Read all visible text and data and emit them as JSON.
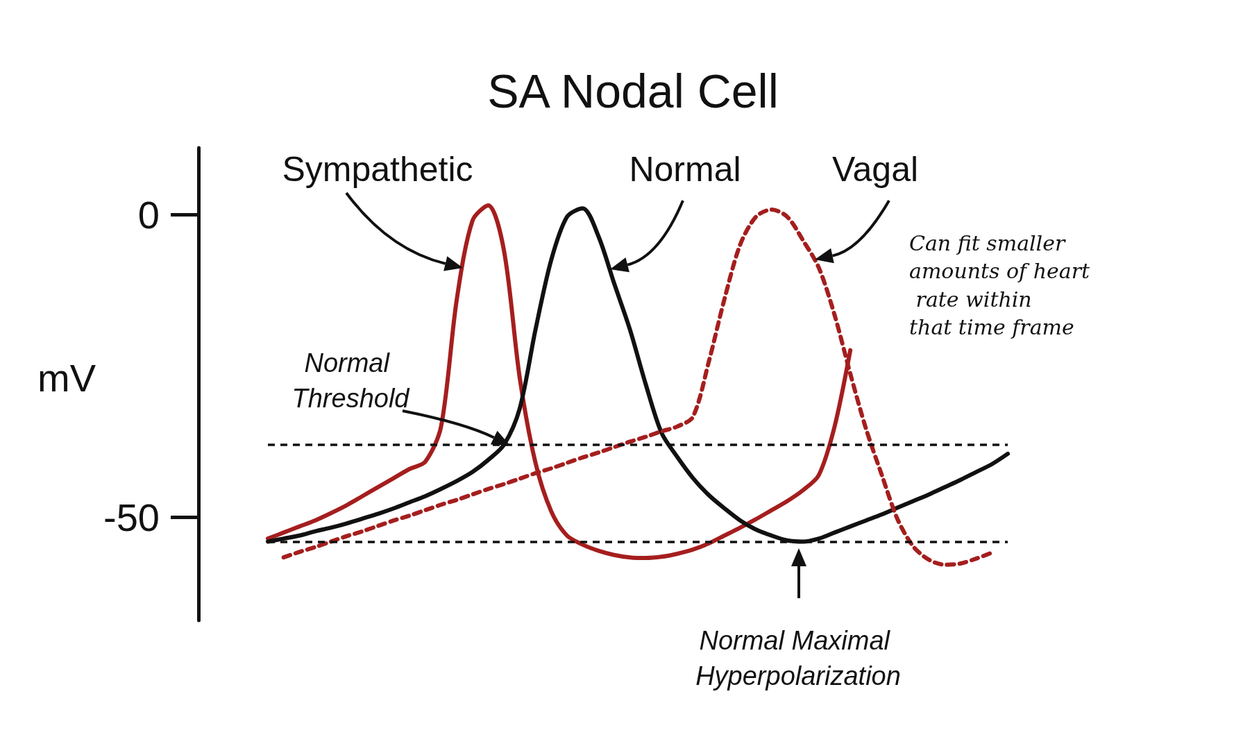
{
  "chart_data": {
    "type": "line",
    "title": "SA Nodal Cell",
    "ylabel": "mV",
    "categories": [
      null,
      null,
      null,
      null,
      null,
      null,
      null,
      null,
      null,
      null,
      null,
      null,
      null,
      null,
      null,
      null,
      null,
      null,
      null,
      null,
      null,
      null,
      null,
      null,
      null,
      null,
      null,
      null,
      null,
      null,
      null,
      null,
      null,
      null,
      null,
      null,
      null,
      null,
      null,
      null,
      null,
      null,
      null,
      null,
      null,
      null,
      null,
      null
    ],
    "series": [
      {
        "name": "Sympathetic",
        "color": "#a51e1e",
        "line_style": "solid",
        "values": [
          -53.5,
          -52.5,
          -51.5,
          -50.5,
          -49.3,
          -48,
          -46.5,
          -45,
          -43.5,
          -42,
          -40.8,
          -35,
          -14,
          -1,
          1.5,
          -6,
          -27,
          -41,
          -49,
          -53,
          -54.5,
          -55.5,
          -56.2,
          -56.6,
          -56.7,
          -56.5,
          -56,
          -55.3,
          -54.3,
          -53,
          -51.7,
          -50.3,
          -48.8,
          -47.3,
          -45.5,
          -43,
          -35,
          -22.4,
          null,
          null,
          null,
          null,
          null,
          null,
          null,
          null,
          null,
          null
        ]
      },
      {
        "name": "Normal",
        "color": "#111111",
        "line_style": "solid",
        "values": [
          -54,
          -53.5,
          -53,
          -52.3,
          -51.7,
          -51,
          -50.2,
          -49.4,
          -48.5,
          -47.5,
          -46.5,
          -45.3,
          -44,
          -42.5,
          -40.5,
          -38,
          -32,
          -19,
          -7.5,
          -0.4,
          1,
          -3.6,
          -11.4,
          -19,
          -28,
          -36,
          -40,
          -43.5,
          -46.3,
          -48.5,
          -50.5,
          -52,
          -53,
          -53.8,
          -54,
          -53.5,
          -52.5,
          -51.5,
          -50.5,
          -49.5,
          -48.4,
          -47.3,
          -46.2,
          -45,
          -43.8,
          -42.5,
          -41.2,
          -39.5
        ]
      },
      {
        "name": "Vagal",
        "color": "#a51e1e",
        "line_style": "dashed",
        "values": [
          null,
          -56.6,
          -55.7,
          -54.9,
          -54,
          -53.1,
          -52.3,
          -51.4,
          -50.5,
          -49.7,
          -48.8,
          -47.9,
          -47.1,
          -46.2,
          -45.3,
          -44.5,
          -43.6,
          -42.7,
          -41.9,
          -41,
          -40.1,
          -39.3,
          -38.4,
          -37.5,
          -36.7,
          -35.8,
          -35,
          -33.4,
          -24.4,
          -14,
          -5,
          -0.4,
          0.8,
          -0.4,
          -4.3,
          -8.8,
          -16.6,
          -26.3,
          -35.4,
          -43,
          -50.3,
          -54.8,
          -57,
          -57.8,
          -57.6,
          -56.8,
          -55.8,
          null
        ]
      }
    ],
    "ylim": [
      -67,
      11
    ],
    "yticks": [
      -50,
      0
    ],
    "ref_lines": [
      {
        "axis": "y",
        "value": -38,
        "label": null,
        "color": "#111111",
        "line_style": "dashed"
      },
      {
        "axis": "y",
        "value": -54,
        "label": null,
        "color": "#111111",
        "line_style": "dashed"
      }
    ],
    "annotations": [
      "Normal Threshold",
      "Normal Maximal Hyperpolarization",
      "Can fit smaller amounts of heart rate within that time frame"
    ],
    "grid": false,
    "legend": false,
    "marker": "none",
    "tick_labels": "y"
  }
}
